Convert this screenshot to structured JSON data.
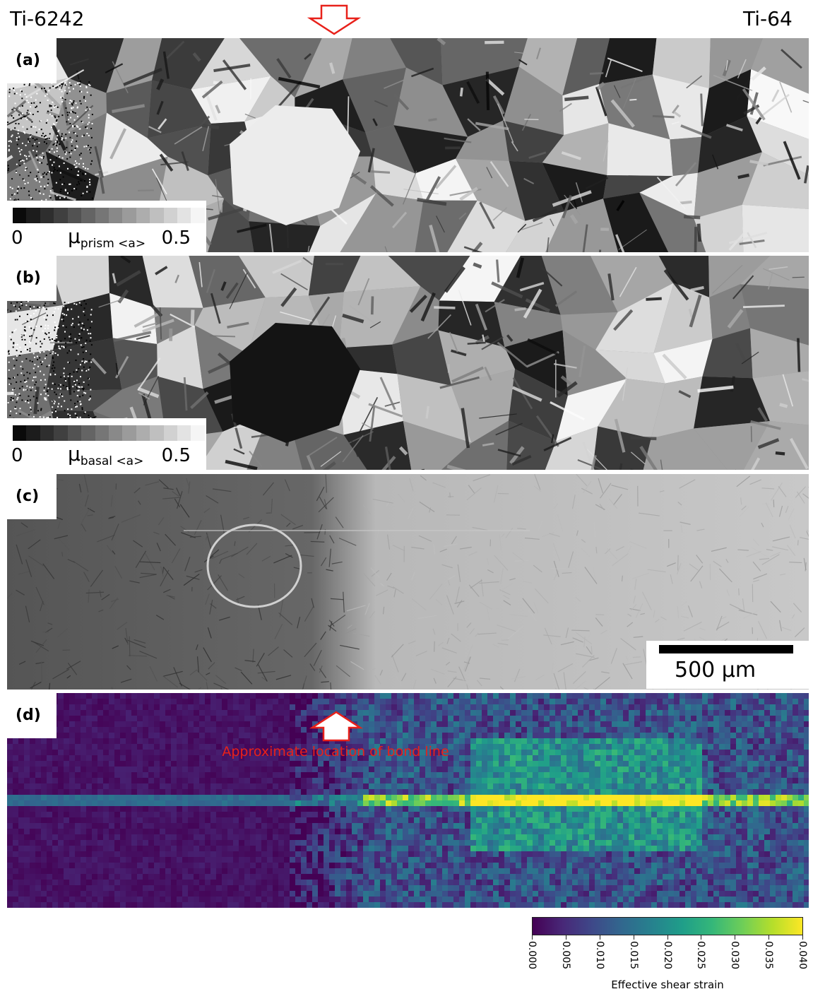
{
  "labels": {
    "left_material": "Ti-6242",
    "right_material": "Ti-64",
    "bond_line": "Approximate location of  bond line"
  },
  "panels": [
    {
      "letter": "(a)",
      "map_type": "schmid-prism"
    },
    {
      "letter": "(b)",
      "map_type": "schmid-basal"
    },
    {
      "letter": "(c)",
      "map_type": "sem-micrograph"
    },
    {
      "letter": "(d)",
      "map_type": "strain-heatmap"
    }
  ],
  "colorbar_a": {
    "min": "0",
    "max": "0.5",
    "mu": "μ",
    "sub": "prism <a>"
  },
  "colorbar_b": {
    "min": "0",
    "max": "0.5",
    "mu": "μ",
    "sub": "basal <a>"
  },
  "scale_bar": {
    "label": "500 µm"
  },
  "strain_colorbar": {
    "title": "Effective shear strain",
    "ticks": [
      "0.000",
      "0.005",
      "0.010",
      "0.015",
      "0.020",
      "0.025",
      "0.030",
      "0.035",
      "0.040"
    ],
    "colormap": "viridis"
  },
  "colors": {
    "arrow": "#e8211a",
    "bond_text": "#e8211a"
  }
}
